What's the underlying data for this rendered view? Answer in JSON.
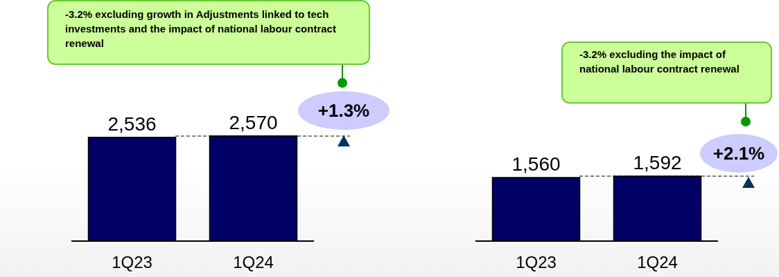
{
  "chart_data": [
    {
      "type": "bar",
      "categories": [
        "1Q23",
        "1Q24"
      ],
      "values": [
        2536,
        2570
      ],
      "value_labels": [
        "2,536",
        "2,570"
      ],
      "color": "#000066",
      "annotations": [
        "-3.2% excluding growth in Adjustments linked to tech investments and the impact of national labour contract renewal",
        "+1.3%"
      ]
    },
    {
      "type": "bar",
      "categories": [
        "1Q23",
        "1Q24"
      ],
      "values": [
        1560,
        1592
      ],
      "value_labels": [
        "1,560",
        "1,592"
      ],
      "color": "#000066",
      "annotations": [
        "-3.2% excluding the impact of national labour contract renewal",
        "+2.1%"
      ]
    }
  ]
}
